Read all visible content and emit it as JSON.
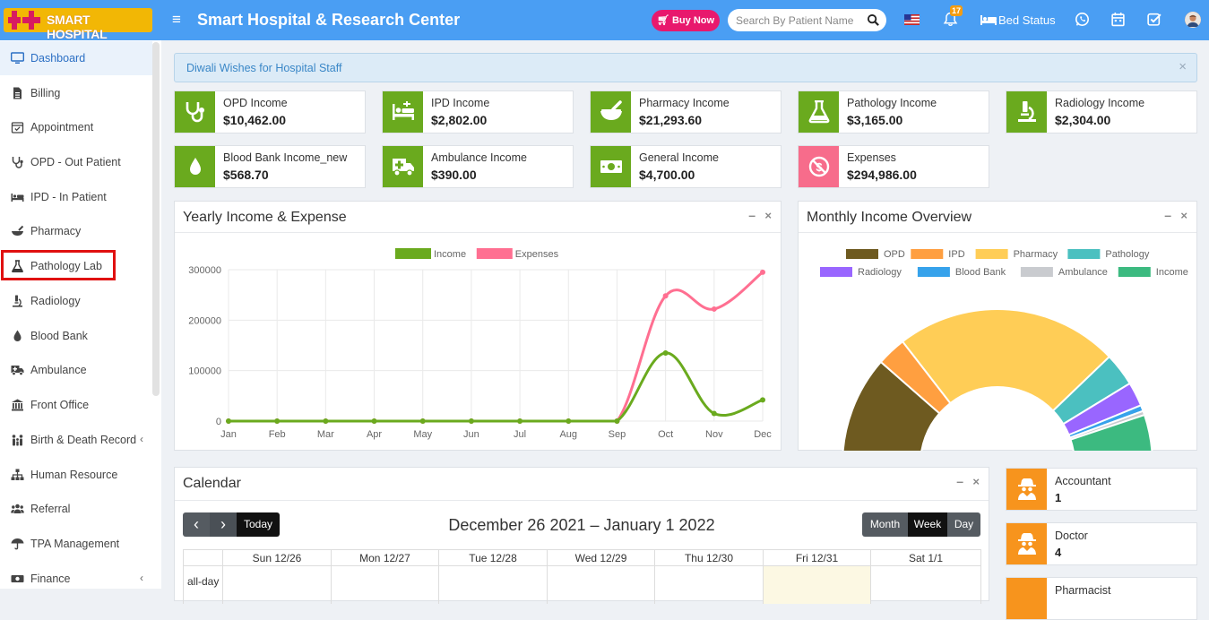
{
  "header": {
    "logo_text": "SMART HOSPITAL",
    "title": "Smart Hospital & Research Center",
    "buy_label": "Buy Now",
    "search_placeholder": "Search By Patient Name",
    "notification_count": "17",
    "bed_status_label": "Bed Status",
    "icons": [
      "menu-icon",
      "cart-icon",
      "search-icon",
      "flag-us-icon",
      "bell-icon",
      "bed-icon",
      "whatsapp-icon",
      "calendar-icon",
      "task-check-icon",
      "user-avatar"
    ]
  },
  "sidebar": {
    "items": [
      {
        "label": "Dashboard",
        "icon": "monitor-icon",
        "active": true
      },
      {
        "label": "Billing",
        "icon": "file-icon"
      },
      {
        "label": "Appointment",
        "icon": "calendar-check-icon"
      },
      {
        "label": "OPD - Out Patient",
        "icon": "stethoscope-icon"
      },
      {
        "label": "IPD - In Patient",
        "icon": "bed-icon"
      },
      {
        "label": "Pharmacy",
        "icon": "mortar-pestle-icon"
      },
      {
        "label": "Pathology Lab",
        "icon": "flask-icon"
      },
      {
        "label": "Radiology",
        "icon": "microscope-icon"
      },
      {
        "label": "Blood Bank",
        "icon": "drop-icon"
      },
      {
        "label": "Ambulance",
        "icon": "ambulance-icon"
      },
      {
        "label": "Front Office",
        "icon": "building-icon"
      },
      {
        "label": "Birth & Death Record",
        "icon": "family-icon",
        "has_children": true
      },
      {
        "label": "Human Resource",
        "icon": "sitemap-icon"
      },
      {
        "label": "Referral",
        "icon": "users-icon"
      },
      {
        "label": "TPA Management",
        "icon": "umbrella-icon"
      },
      {
        "label": "Finance",
        "icon": "money-icon",
        "has_children": true
      }
    ],
    "highlight_color": "#e01010"
  },
  "notice": {
    "text": "Diwali Wishes for Hospital Staff",
    "close": "×"
  },
  "stats": [
    {
      "label": "OPD Income",
      "value": "$10,462.00",
      "icon": "stethoscope-icon"
    },
    {
      "label": "IPD Income",
      "value": "$2,802.00",
      "icon": "hospital-bed-icon"
    },
    {
      "label": "Pharmacy Income",
      "value": "$21,293.60",
      "icon": "mortar-pestle-icon"
    },
    {
      "label": "Pathology Income",
      "value": "$3,165.00",
      "icon": "flask-icon"
    },
    {
      "label": "Radiology Income",
      "value": "$2,304.00",
      "icon": "microscope-icon"
    },
    {
      "label": "Blood Bank Income_new",
      "value": "$568.70",
      "icon": "drop-icon"
    },
    {
      "label": "Ambulance Income",
      "value": "$390.00",
      "icon": "ambulance-icon"
    },
    {
      "label": "General Income",
      "value": "$4,700.00",
      "icon": "money-bill-icon"
    },
    {
      "label": "Expenses",
      "value": "$294,986.00",
      "icon": "no-money-icon"
    }
  ],
  "colors": {
    "header": "#4a9ef3",
    "income_green": "#6aaa1e",
    "expense_pink": "#f76c8b",
    "role_orange": "#f7941d"
  },
  "yearly_panel": {
    "title": "Yearly Income & Expense",
    "min": "–",
    "close": "×"
  },
  "monthly_panel": {
    "title": "Monthly Income Overview",
    "min": "–",
    "close": "×"
  },
  "chart_data": [
    {
      "type": "line",
      "title": "Yearly Income & Expense",
      "x": [
        "Jan",
        "Feb",
        "Mar",
        "Apr",
        "May",
        "Jun",
        "Jul",
        "Aug",
        "Sep",
        "Oct",
        "Nov",
        "Dec"
      ],
      "ylim": [
        0,
        300000
      ],
      "yticks": [
        "0",
        "100000",
        "200000",
        "300000"
      ],
      "legend_position": "top",
      "grid": true,
      "series": [
        {
          "name": "Income",
          "color": "#6aaa1e",
          "values": [
            0,
            0,
            0,
            0,
            0,
            0,
            0,
            0,
            0,
            135000,
            15000,
            42000
          ]
        },
        {
          "name": "Expenses",
          "color": "#ff6f91",
          "values": [
            0,
            0,
            0,
            0,
            0,
            0,
            0,
            0,
            0,
            248000,
            222000,
            295000
          ]
        }
      ]
    },
    {
      "type": "pie",
      "variant": "half-doughnut",
      "title": "Monthly Income Overview",
      "legend_position": "top",
      "series": [
        {
          "name": "OPD",
          "color": "#6e5a20",
          "value": 10462
        },
        {
          "name": "IPD",
          "color": "#ff9f40",
          "value": 2802
        },
        {
          "name": "Pharmacy",
          "color": "#ffcd56",
          "value": 21293.6
        },
        {
          "name": "Pathology",
          "color": "#4bc0c0",
          "value": 3165
        },
        {
          "name": "Radiology",
          "color": "#9966ff",
          "value": 2304
        },
        {
          "name": "Blood Bank",
          "color": "#36a2eb",
          "value": 568.7
        },
        {
          "name": "Ambulance",
          "color": "#c9cbcf",
          "value": 390
        },
        {
          "name": "Income",
          "color": "#3cba80",
          "value": 4700
        }
      ]
    }
  ],
  "calendar": {
    "title": "Calendar",
    "min": "–",
    "close": "×",
    "prev": "‹",
    "next": "›",
    "today_label": "Today",
    "range": "December 26 2021 – January 1 2022",
    "views": [
      "Month",
      "Week",
      "Day"
    ],
    "active_view": "Week",
    "allday_label": "all-day",
    "days": [
      "Sun 12/26",
      "Mon 12/27",
      "Tue 12/28",
      "Wed 12/29",
      "Thu 12/30",
      "Fri 12/31",
      "Sat 1/1"
    ],
    "today_index": 5
  },
  "roles": [
    {
      "label": "Accountant",
      "value": "1"
    },
    {
      "label": "Doctor",
      "value": "4"
    },
    {
      "label": "Pharmacist",
      "value": ""
    }
  ]
}
